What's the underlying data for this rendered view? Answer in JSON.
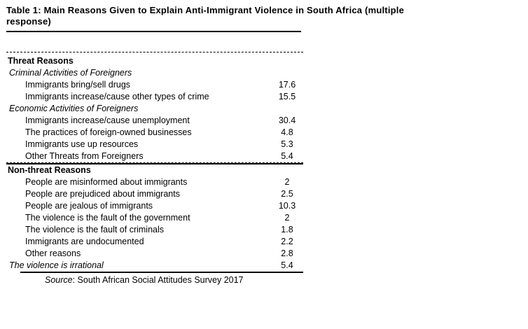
{
  "title": {
    "line1": "Table 1: Main Reasons Given to Explain Anti-Immigrant Violence in South Africa (multiple",
    "line2": "response)"
  },
  "table": {
    "rows": [
      {
        "label": "Threat Reasons",
        "value": "",
        "style": "section"
      },
      {
        "label": "Criminal Activities of Foreigners",
        "value": "",
        "style": "subsection"
      },
      {
        "label": "Immigrants bring/sell drugs",
        "value": "17.6",
        "style": "item"
      },
      {
        "label": "Immigrants increase/cause other types of crime",
        "value": "15.5",
        "style": "item"
      },
      {
        "label": "Economic Activities of Foreigners",
        "value": "",
        "style": "subsection"
      },
      {
        "label": "Immigrants increase/cause unemployment",
        "value": "30.4",
        "style": "item"
      },
      {
        "label": "The practices of foreign-owned businesses",
        "value": "4.8",
        "style": "item"
      },
      {
        "label": "Immigrants use up resources",
        "value": "5.3",
        "style": "item"
      },
      {
        "label": "Other Threats from Foreigners",
        "value": "5.4",
        "style": "item",
        "border_bottom": "dashed"
      },
      {
        "label": "Non-threat Reasons",
        "value": "",
        "style": "section",
        "border_top": "solid"
      },
      {
        "label": "People are misinformed about immigrants",
        "value": "2",
        "style": "item"
      },
      {
        "label": "People are prejudiced about immigrants",
        "value": "2.5",
        "style": "item"
      },
      {
        "label": "People are jealous of immigrants",
        "value": "10.3",
        "style": "item"
      },
      {
        "label": "The violence is the fault of the government",
        "value": "2",
        "style": "item"
      },
      {
        "label": "The violence is the fault of criminals",
        "value": "1.8",
        "style": "item"
      },
      {
        "label": "Immigrants are undocumented",
        "value": "2.2",
        "style": "item"
      },
      {
        "label": "Other reasons",
        "value": "2.8",
        "style": "item"
      },
      {
        "label": "The violence is irrational",
        "value": "5.4",
        "style": "subsection"
      }
    ]
  },
  "source": {
    "prefix": "Source",
    "rest": ": South African Social Attitudes Survey 2017"
  }
}
